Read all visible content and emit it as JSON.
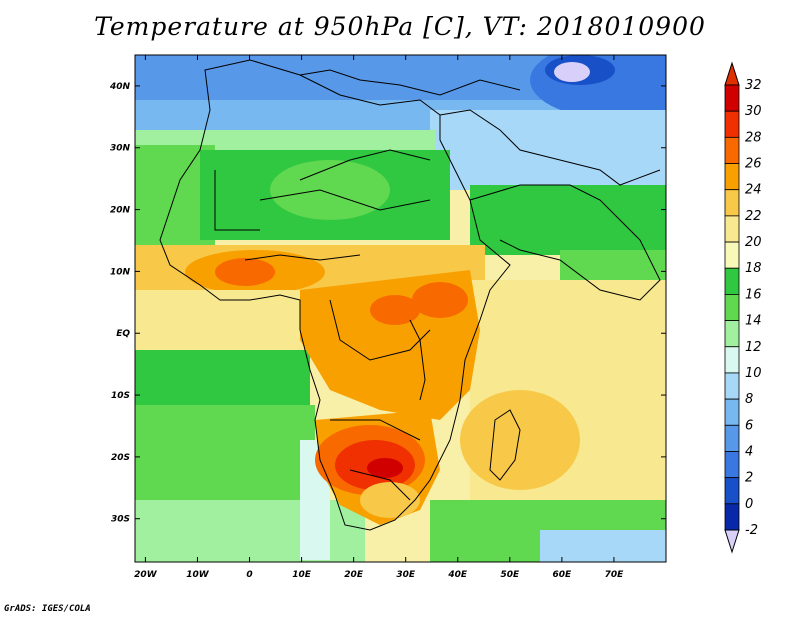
{
  "title": "Temperature at 950hPa [C], VT: 2018010900",
  "credit": "GrADS: IGES/COLA",
  "map": {
    "region": "Africa",
    "projection": "latlon",
    "lon_range": [
      -22,
      80
    ],
    "lat_range": [
      -37,
      45
    ],
    "lon_ticks": [
      {
        "value": -20,
        "label": "20W"
      },
      {
        "value": -10,
        "label": "10W"
      },
      {
        "value": 0,
        "label": "0"
      },
      {
        "value": 10,
        "label": "10E"
      },
      {
        "value": 20,
        "label": "20E"
      },
      {
        "value": 30,
        "label": "30E"
      },
      {
        "value": 40,
        "label": "40E"
      },
      {
        "value": 50,
        "label": "50E"
      },
      {
        "value": 60,
        "label": "60E"
      },
      {
        "value": 70,
        "label": "70E"
      }
    ],
    "lat_ticks": [
      {
        "value": 40,
        "label": "40N"
      },
      {
        "value": 30,
        "label": "30N"
      },
      {
        "value": 20,
        "label": "20N"
      },
      {
        "value": 10,
        "label": "10N"
      },
      {
        "value": 0,
        "label": "EQ"
      },
      {
        "value": -10,
        "label": "10S"
      },
      {
        "value": -20,
        "label": "20S"
      },
      {
        "value": -30,
        "label": "30S"
      }
    ]
  },
  "colorbar": {
    "levels": [
      {
        "label": "32",
        "color": "#d00000"
      },
      {
        "label": "30",
        "color": "#f03000"
      },
      {
        "label": "28",
        "color": "#f86a00"
      },
      {
        "label": "26",
        "color": "#f8a000"
      },
      {
        "label": "24",
        "color": "#f8c848"
      },
      {
        "label": "22",
        "color": "#f8e890"
      },
      {
        "label": "20",
        "color": "#f8f8b8"
      },
      {
        "label": "18",
        "color": "#30c840"
      },
      {
        "label": "16",
        "color": "#60d850"
      },
      {
        "label": "14",
        "color": "#a0f0a0"
      },
      {
        "label": "12",
        "color": "#d8f8f0"
      },
      {
        "label": "10",
        "color": "#a8d8f8"
      },
      {
        "label": "8",
        "color": "#78b8f0"
      },
      {
        "label": "6",
        "color": "#5898e8"
      },
      {
        "label": "4",
        "color": "#3878e0"
      },
      {
        "label": "2",
        "color": "#1850c8"
      },
      {
        "label": "0",
        "color": "#0828a8"
      },
      {
        "label": "-2",
        "color": "#081870"
      }
    ],
    "top_color": "#e03000",
    "bottom_color": "#d8d0f8"
  }
}
